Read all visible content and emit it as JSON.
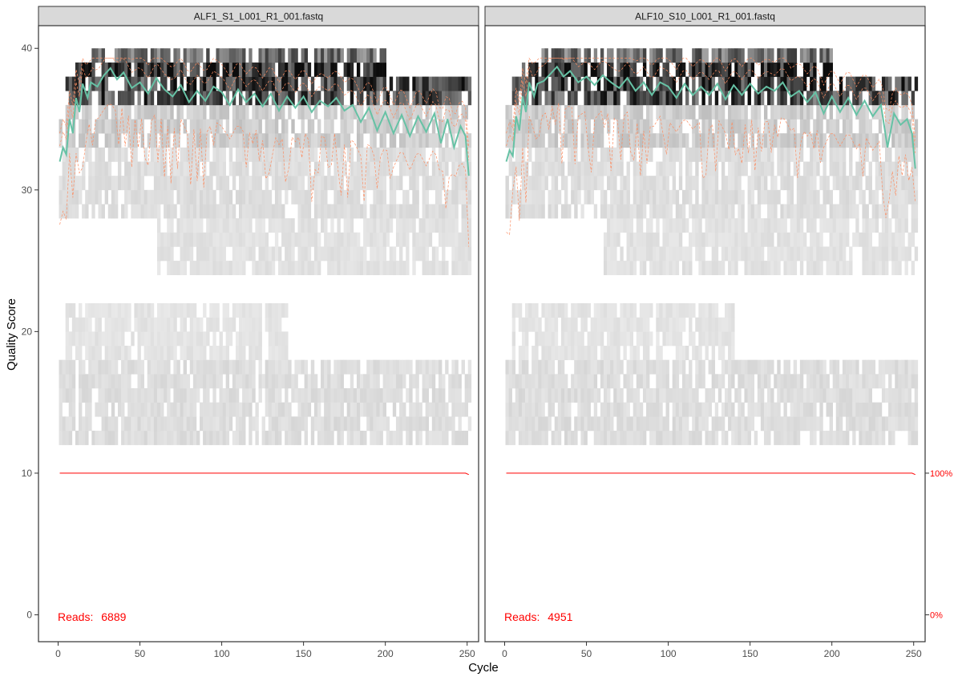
{
  "chart_data": {
    "type": "heatmap",
    "xlabel": "Cycle",
    "ylabel": "Quality Score",
    "xlim": [
      -12,
      257
    ],
    "ylim": [
      -1.9,
      41.6
    ],
    "xticks": [
      0,
      50,
      100,
      150,
      200,
      250
    ],
    "yticks": [
      0,
      10,
      20,
      30,
      40
    ],
    "secondary_axis": {
      "labels": [
        "100%",
        "0%"
      ],
      "values": [
        10,
        0
      ],
      "color": "#ff0000"
    },
    "colors": {
      "mean": "#66c2a5",
      "quartiles": "#fc8d62",
      "cumulative": "#ff0000",
      "reads_text": "#ff0000",
      "heat_low": "#f2f2f2",
      "heat_high": "#000000"
    },
    "panels": [
      {
        "title": "ALF1_S1_L001_R1_001.fastq",
        "reads_label": "Reads:",
        "reads": "6889",
        "max_cycle": 251,
        "cumulative_level": 10,
        "mean_quality": [
          [
            1,
            32.0
          ],
          [
            3,
            33.0
          ],
          [
            5,
            32.5
          ],
          [
            7,
            35.0
          ],
          [
            9,
            34.0
          ],
          [
            11,
            36.5
          ],
          [
            13,
            35.5
          ],
          [
            15,
            37.5
          ],
          [
            18,
            36.5
          ],
          [
            20,
            37.6
          ],
          [
            24,
            37.3
          ],
          [
            28,
            38.1
          ],
          [
            32,
            38.6
          ],
          [
            36,
            37.8
          ],
          [
            40,
            38.3
          ],
          [
            45,
            37.2
          ],
          [
            50,
            37.6
          ],
          [
            55,
            36.8
          ],
          [
            60,
            37.9
          ],
          [
            65,
            37.1
          ],
          [
            70,
            36.6
          ],
          [
            75,
            37.4
          ],
          [
            80,
            36.2
          ],
          [
            85,
            37.0
          ],
          [
            90,
            36.3
          ],
          [
            95,
            37.3
          ],
          [
            100,
            36.9
          ],
          [
            105,
            36.0
          ],
          [
            110,
            37.1
          ],
          [
            115,
            36.2
          ],
          [
            120,
            36.8
          ],
          [
            125,
            35.9
          ],
          [
            130,
            36.8
          ],
          [
            135,
            35.6
          ],
          [
            140,
            36.6
          ],
          [
            145,
            35.8
          ],
          [
            150,
            36.6
          ],
          [
            155,
            35.5
          ],
          [
            160,
            36.3
          ],
          [
            165,
            35.9
          ],
          [
            170,
            36.5
          ],
          [
            175,
            35.6
          ],
          [
            180,
            36.0
          ],
          [
            185,
            34.8
          ],
          [
            190,
            35.8
          ],
          [
            195,
            34.2
          ],
          [
            200,
            35.5
          ],
          [
            205,
            34.0
          ],
          [
            210,
            35.3
          ],
          [
            215,
            33.8
          ],
          [
            220,
            35.2
          ],
          [
            225,
            34.1
          ],
          [
            230,
            35.4
          ],
          [
            234,
            33.3
          ],
          [
            238,
            35.0
          ],
          [
            242,
            33.0
          ],
          [
            246,
            34.5
          ],
          [
            249,
            33.8
          ],
          [
            251,
            31.0
          ]
        ]
      },
      {
        "title": "ALF10_S10_L001_R1_001.fastq",
        "reads_label": "Reads:",
        "reads": "4951",
        "max_cycle": 251,
        "cumulative_level": 10,
        "mean_quality": [
          [
            1,
            32.0
          ],
          [
            3,
            32.8
          ],
          [
            5,
            32.4
          ],
          [
            7,
            35.2
          ],
          [
            9,
            34.2
          ],
          [
            11,
            36.6
          ],
          [
            13,
            35.5
          ],
          [
            15,
            37.6
          ],
          [
            18,
            36.6
          ],
          [
            20,
            37.5
          ],
          [
            24,
            37.7
          ],
          [
            28,
            38.2
          ],
          [
            32,
            38.7
          ],
          [
            36,
            38.0
          ],
          [
            40,
            38.4
          ],
          [
            45,
            37.6
          ],
          [
            50,
            38.0
          ],
          [
            55,
            37.4
          ],
          [
            60,
            38.1
          ],
          [
            65,
            37.6
          ],
          [
            70,
            37.2
          ],
          [
            75,
            37.9
          ],
          [
            80,
            37.0
          ],
          [
            85,
            37.6
          ],
          [
            90,
            36.7
          ],
          [
            95,
            37.6
          ],
          [
            100,
            37.3
          ],
          [
            105,
            36.5
          ],
          [
            110,
            37.5
          ],
          [
            115,
            36.7
          ],
          [
            120,
            37.3
          ],
          [
            125,
            36.7
          ],
          [
            130,
            37.5
          ],
          [
            135,
            36.4
          ],
          [
            140,
            37.4
          ],
          [
            145,
            36.7
          ],
          [
            150,
            37.5
          ],
          [
            155,
            36.8
          ],
          [
            160,
            37.3
          ],
          [
            165,
            37.0
          ],
          [
            170,
            37.6
          ],
          [
            175,
            36.6
          ],
          [
            180,
            37.0
          ],
          [
            185,
            36.2
          ],
          [
            190,
            36.9
          ],
          [
            195,
            35.4
          ],
          [
            200,
            36.6
          ],
          [
            205,
            35.5
          ],
          [
            210,
            36.5
          ],
          [
            215,
            35.3
          ],
          [
            220,
            36.3
          ],
          [
            225,
            35.2
          ],
          [
            230,
            36.0
          ],
          [
            234,
            33.0
          ],
          [
            238,
            35.4
          ],
          [
            242,
            34.6
          ],
          [
            246,
            35.0
          ],
          [
            249,
            34.0
          ],
          [
            251,
            31.5
          ]
        ]
      }
    ]
  }
}
